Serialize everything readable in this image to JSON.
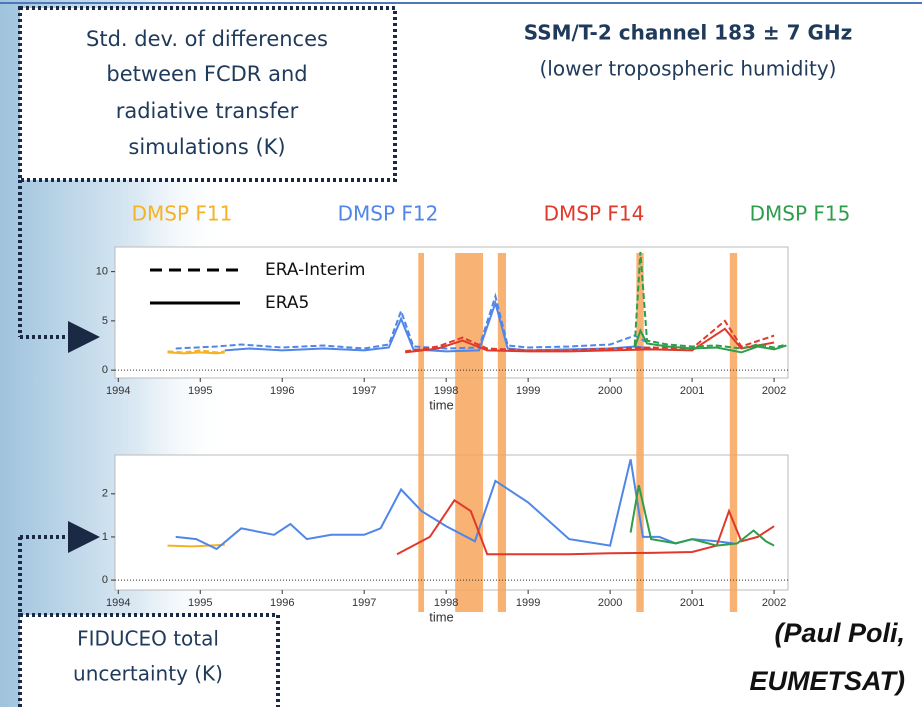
{
  "slide": {
    "box_top": [
      "Std. dev. of differences",
      "between FCDR and",
      "radiative transfer",
      "simulations (K)"
    ],
    "title": "SSM/T-2 channel 183 ± 7 GHz",
    "subtitle": "(lower tropospheric humidity)",
    "box_bottom": [
      "FIDUCEO total",
      "uncertainty (K)"
    ],
    "credit": [
      "(Paul Poli,",
      "EUMETSAT)"
    ]
  },
  "satellites": [
    {
      "name": "DMSP F11",
      "color": "#f5b324"
    },
    {
      "name": "DMSP F12",
      "color": "#4f86e8"
    },
    {
      "name": "DMSP F14",
      "color": "#e0392b"
    },
    {
      "name": "DMSP F15",
      "color": "#2e9e4a"
    }
  ],
  "highlight_spans": [
    [
      1997.66,
      1997.73
    ],
    [
      1998.11,
      1998.45
    ],
    [
      1998.63,
      1998.73
    ],
    [
      2000.32,
      2000.41
    ],
    [
      2001.46,
      2001.55
    ]
  ],
  "highlight_color": "#f7a55a",
  "chart_data": [
    {
      "type": "line",
      "xlabel": "time",
      "xlim": [
        1993.96,
        2002.17
      ],
      "xticks": [
        1994,
        1995,
        1996,
        1997,
        1998,
        1999,
        2000,
        2001,
        2002
      ],
      "ylim": [
        -0.8,
        12.5
      ],
      "yticks": [
        0,
        5,
        10
      ],
      "legend": [
        {
          "name": "ERA-Interim",
          "dash": true
        },
        {
          "name": "ERA5",
          "dash": false
        }
      ],
      "series": [
        {
          "color": "#f5b324",
          "dash": true,
          "x": [
            1994.6,
            1994.8,
            1995.0,
            1995.2,
            1995.3
          ],
          "values": [
            1.9,
            1.8,
            2.0,
            1.8,
            1.9
          ]
        },
        {
          "color": "#f5b324",
          "dash": false,
          "x": [
            1994.6,
            1994.8,
            1995.0,
            1995.2,
            1995.3
          ],
          "values": [
            1.8,
            1.7,
            1.8,
            1.7,
            1.8
          ]
        },
        {
          "color": "#4f86e8",
          "dash": true,
          "x": [
            1994.7,
            1995.2,
            1995.5,
            1996.0,
            1996.5,
            1997.0,
            1997.3,
            1997.45,
            1997.6,
            1998.0,
            1998.4,
            1998.6,
            1998.75,
            1999.0,
            1999.5,
            2000.0,
            2000.3,
            2000.5
          ],
          "values": [
            2.2,
            2.4,
            2.6,
            2.3,
            2.5,
            2.2,
            2.6,
            6.0,
            2.4,
            2.2,
            2.3,
            7.5,
            2.5,
            2.3,
            2.4,
            2.6,
            3.5,
            2.6
          ]
        },
        {
          "color": "#4f86e8",
          "dash": false,
          "x": [
            1995.3,
            1995.6,
            1996.0,
            1996.5,
            1997.0,
            1997.3,
            1997.45,
            1997.6,
            1998.0,
            1998.4,
            1998.6,
            1998.75,
            1999.0,
            1999.5,
            2000.0,
            2000.3,
            2000.5
          ],
          "values": [
            2.0,
            2.2,
            2.0,
            2.2,
            2.0,
            2.3,
            5.2,
            2.1,
            1.9,
            2.0,
            6.8,
            2.2,
            2.0,
            2.1,
            2.2,
            2.4,
            2.2
          ]
        },
        {
          "color": "#e0392b",
          "dash": true,
          "x": [
            1997.5,
            1997.9,
            1998.2,
            1998.5,
            1999.0,
            1999.5,
            2000.0,
            2000.5,
            2001.0,
            2001.4,
            2001.6,
            2002.0
          ],
          "values": [
            1.9,
            2.4,
            3.3,
            2.2,
            2.0,
            2.0,
            2.2,
            2.3,
            2.2,
            5.0,
            2.4,
            3.5
          ]
        },
        {
          "color": "#e0392b",
          "dash": false,
          "x": [
            1997.5,
            1997.9,
            1998.2,
            1998.5,
            1999.0,
            1999.5,
            2000.0,
            2000.5,
            2001.0,
            2001.4,
            2001.6,
            2002.0
          ],
          "values": [
            1.8,
            2.2,
            3.0,
            2.0,
            1.9,
            1.9,
            2.0,
            2.1,
            2.0,
            4.2,
            2.2,
            2.8
          ]
        },
        {
          "color": "#2e9e4a",
          "dash": true,
          "x": [
            2000.3,
            2000.37,
            2000.45,
            2000.7,
            2001.0,
            2001.3,
            2001.6,
            2001.8,
            2002.0,
            2002.15
          ],
          "values": [
            2.5,
            12.0,
            3.0,
            2.6,
            2.4,
            2.5,
            2.2,
            2.6,
            2.3,
            2.6
          ]
        },
        {
          "color": "#2e9e4a",
          "dash": false,
          "x": [
            2000.3,
            2000.37,
            2000.45,
            2000.7,
            2001.0,
            2001.3,
            2001.6,
            2001.8,
            2002.0,
            2002.15
          ],
          "values": [
            2.3,
            4.0,
            2.7,
            2.4,
            2.2,
            2.3,
            1.8,
            2.4,
            2.1,
            2.5
          ]
        }
      ]
    },
    {
      "type": "line",
      "xlabel": "time",
      "xlim": [
        1993.96,
        2002.17
      ],
      "xticks": [
        1994,
        1995,
        1996,
        1997,
        1998,
        1999,
        2000,
        2001,
        2002
      ],
      "ylim": [
        -0.23,
        2.9
      ],
      "yticks": [
        0,
        1,
        2
      ],
      "series": [
        {
          "color": "#f5b324",
          "dash": false,
          "x": [
            1994.6,
            1994.9,
            1995.1,
            1995.3
          ],
          "values": [
            0.8,
            0.78,
            0.8,
            0.82
          ]
        },
        {
          "color": "#4f86e8",
          "dash": false,
          "x": [
            1994.7,
            1994.95,
            1995.2,
            1995.5,
            1995.9,
            1996.1,
            1996.3,
            1996.6,
            1997.0,
            1997.2,
            1997.45,
            1997.7,
            1998.0,
            1998.35,
            1998.6,
            1999.0,
            1999.5,
            2000.0,
            2000.25,
            2000.4,
            2000.6,
            2000.8,
            2001.0,
            2001.3,
            2001.5
          ],
          "values": [
            1.0,
            0.95,
            0.72,
            1.2,
            1.05,
            1.3,
            0.95,
            1.05,
            1.05,
            1.2,
            2.1,
            1.6,
            1.25,
            0.9,
            2.3,
            1.8,
            0.95,
            0.8,
            2.8,
            1.0,
            1.0,
            0.85,
            0.95,
            0.9,
            0.85
          ]
        },
        {
          "color": "#e0392b",
          "dash": false,
          "x": [
            1997.4,
            1997.8,
            1998.1,
            1998.3,
            1998.5,
            1999.0,
            1999.5,
            2000.0,
            2000.5,
            2001.0,
            2001.3,
            2001.45,
            2001.6,
            2001.8,
            2002.0
          ],
          "values": [
            0.6,
            1.0,
            1.85,
            1.6,
            0.6,
            0.6,
            0.6,
            0.62,
            0.63,
            0.65,
            0.8,
            1.6,
            0.9,
            1.0,
            1.25
          ]
        },
        {
          "color": "#2e9e4a",
          "dash": false,
          "x": [
            2000.25,
            2000.35,
            2000.5,
            2000.8,
            2001.0,
            2001.3,
            2001.55,
            2001.75,
            2001.9,
            2002.0
          ],
          "values": [
            1.1,
            2.2,
            0.95,
            0.85,
            0.95,
            0.8,
            0.85,
            1.15,
            0.9,
            0.8
          ]
        }
      ]
    }
  ]
}
